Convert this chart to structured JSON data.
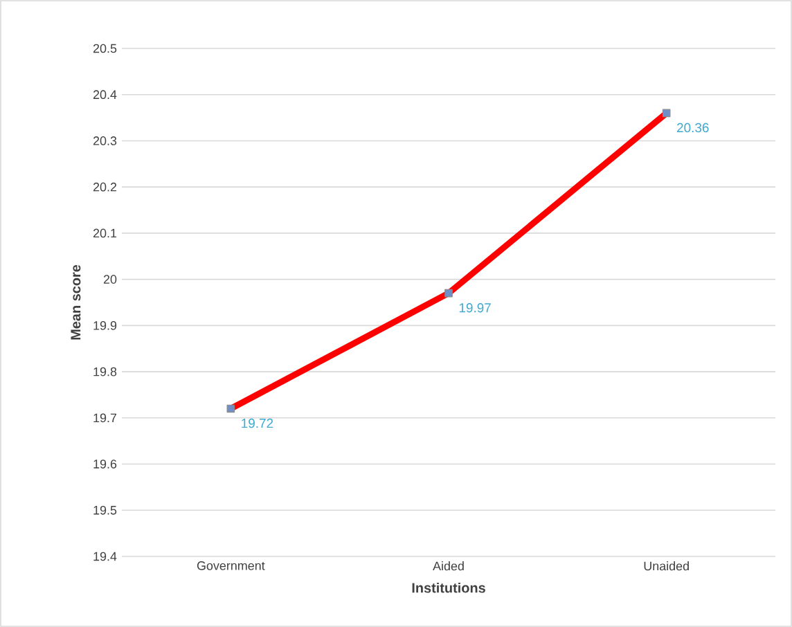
{
  "chart_data": {
    "type": "line",
    "xlabel": "Institutions",
    "ylabel": "Mean score",
    "categories": [
      "Government",
      "Aided",
      "Unaided"
    ],
    "series": [
      {
        "color": "#ff0000",
        "values": [
          19.72,
          19.97,
          20.36
        ],
        "value_labels": [
          "19.72",
          "19.97",
          "20.36"
        ]
      }
    ],
    "ylim": [
      19.4,
      20.5
    ],
    "yticks": [
      19.4,
      19.5,
      19.6,
      19.7,
      19.8,
      19.9,
      20,
      20.1,
      20.2,
      20.3,
      20.4,
      20.5
    ],
    "grid": "y",
    "marker": "square",
    "line_style": "solid"
  }
}
